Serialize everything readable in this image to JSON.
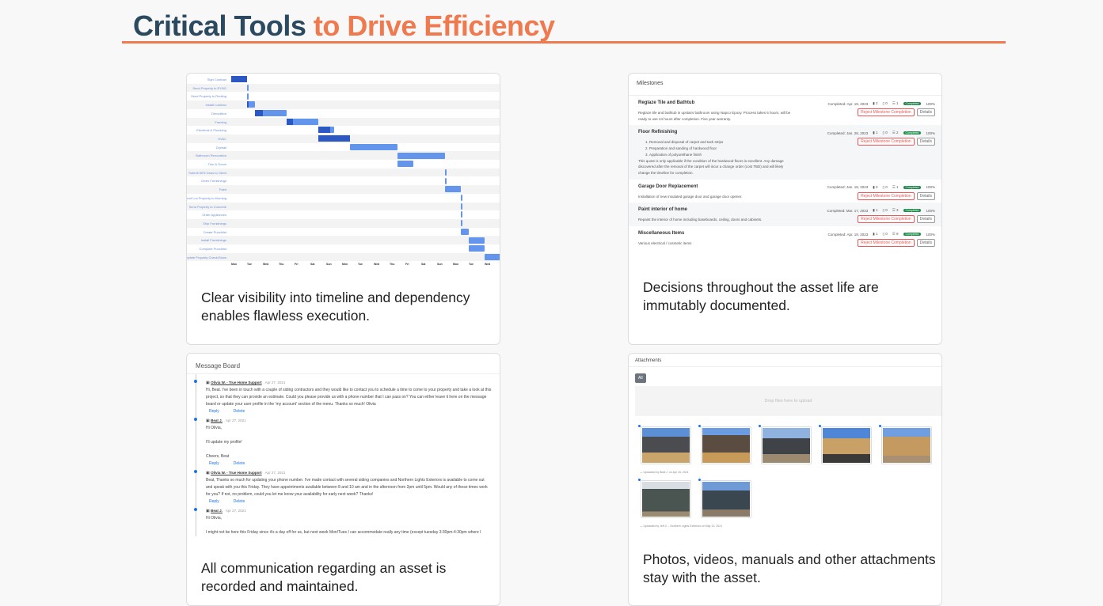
{
  "header": {
    "title_dark": "Critical Tools",
    "title_accent": "to Drive Efficiency"
  },
  "colors": {
    "accent": "#f07a4f",
    "title": "#2b4a60",
    "bar": "#6495ed",
    "bar_done": "#2c58c4",
    "completed_badge": "#1e8a4a"
  },
  "timeline": {
    "caption": "Clear visibility into timeline and dependency enables flawless execution.",
    "axis_ticks": [
      "Mon",
      "Tue",
      "Wed",
      "Thu",
      "Fri",
      "Sat",
      "Sun",
      "Mon",
      "Tue",
      "Wed",
      "Thu",
      "Fri",
      "Sat",
      "Sun",
      "Mon",
      "Tue",
      "Wed",
      "Thu"
    ],
    "tasks": [
      {
        "name": "Sign Contract",
        "start": 0,
        "end": 1,
        "progress": 1
      },
      {
        "name": "Send Property to RYNO",
        "start": 1,
        "end": 1.12,
        "progress": 0
      },
      {
        "name": "Send Property to Roofing",
        "start": 1,
        "end": 1.12,
        "progress": 0
      },
      {
        "name": "Install Lockbox",
        "start": 1,
        "end": 1.5,
        "progress": 0.2
      },
      {
        "name": "Demolition",
        "start": 1.5,
        "end": 3.5,
        "progress": 0.25
      },
      {
        "name": "Framing",
        "start": 3.5,
        "end": 5.5,
        "progress": 0.2
      },
      {
        "name": "Electrical & Plumbing",
        "start": 5.5,
        "end": 6.5,
        "progress": 0.75
      },
      {
        "name": "HVAC",
        "start": 5.5,
        "end": 7.5,
        "progress": 1
      },
      {
        "name": "Drywall",
        "start": 7.5,
        "end": 10.5,
        "progress": 0
      },
      {
        "name": "Bathroom Renovation",
        "start": 10.5,
        "end": 13.5,
        "progress": 0
      },
      {
        "name": "Trim & Doors",
        "start": 10.5,
        "end": 11.5,
        "progress": 0
      },
      {
        "name": "Submit 50% Draw to Client",
        "start": 13.5,
        "end": 13.62,
        "progress": 0
      },
      {
        "name": "Order Furnishings",
        "start": 13.5,
        "end": 13.62,
        "progress": 0
      },
      {
        "name": "Paint",
        "start": 13.5,
        "end": 14.5,
        "progress": 0
      },
      {
        "name": "Send Lux Property to Morning",
        "start": 14.5,
        "end": 14.62,
        "progress": 0
      },
      {
        "name": "Send Property to Concrete",
        "start": 14.5,
        "end": 14.62,
        "progress": 0
      },
      {
        "name": "Order Appliances",
        "start": 14.5,
        "end": 14.62,
        "progress": 0
      },
      {
        "name": "Ship Furnishings",
        "start": 14.5,
        "end": 14.62,
        "progress": 0
      },
      {
        "name": "Create Punchlist",
        "start": 14.5,
        "end": 15,
        "progress": 0
      },
      {
        "name": "Install Furnishings",
        "start": 15,
        "end": 16,
        "progress": 0
      },
      {
        "name": "Complete Punchlist",
        "start": 15,
        "end": 16,
        "progress": 0
      },
      {
        "name": "Complete Property Check/Show",
        "start": 16,
        "end": 17,
        "progress": 0
      }
    ]
  },
  "milestones": {
    "title": "Milestones",
    "caption": "Decisions throughout the asset life are immutably documented.",
    "reject_label": "Reject Milestone Completion",
    "details_label": "Details",
    "status": "Completed",
    "percent": "100%",
    "items": [
      {
        "name": "Reglaze Tile and Bathtub",
        "completed": "Completed: Apr. 19, 2023",
        "comments": "2",
        "files": "0",
        "tasks": "1",
        "desc": "Reglaze tile and bathtub in upstairs bathroom using Napco Epoxy. Process takes 6 hours, will be ready to use 24 hours after completion. Five year warranty.",
        "list": []
      },
      {
        "name": "Floor Refinishing",
        "completed": "Completed: Jan. 28, 2023",
        "comments": "1",
        "files": "0",
        "tasks": "2",
        "list": [
          "Removal and disposal of carpet and tack strips",
          "Preparation and sanding of hardwood floor",
          "Application of polyurethane finish"
        ],
        "desc": "This quote is only applicable if the condition of the hardwood floors is excellent. Any damage discovered after the removal of the carpet will incur a change order (cost TBD) and will likely change the timeline for completion."
      },
      {
        "name": "Garage Door Replacement",
        "completed": "Completed: Jan. 18, 2023",
        "comments": "0",
        "files": "0",
        "tasks": "1",
        "desc": "Installation of new insulated garage door and garage door opener.",
        "list": []
      },
      {
        "name": "Paint interior of home",
        "completed": "Completed: Mar. 17, 2023",
        "comments": "1",
        "files": "0",
        "tasks": "3",
        "desc": "Repaint the interior of home including baseboards, ceiling, doors and cabinets.",
        "list": []
      },
      {
        "name": "Miscellaneous Items",
        "completed": "Completed: Apr. 19, 2023",
        "comments": "1",
        "files": "0",
        "tasks": "9",
        "desc": "Various electrical / cosmetic items",
        "list": []
      }
    ]
  },
  "message_board": {
    "title": "Message Board",
    "caption": "All communication regarding an asset is recorded and maintained.",
    "reply": "Reply",
    "delete": "Delete",
    "messages": [
      {
        "author": "Olivia W. - True Home Support",
        "date": "Apr 27, 2021",
        "body": "Hi, Beat. I've been in touch with a couple of siding contractors and they would like to contact you to schedule a time to come to your property and take a look at this project, so that they can provide an estimate. Could you please provide us with a phone number that I can pass on? You can either leave it here on the message board or update your user profile in the 'my account' section of the menu. Thanks so much! Olivia"
      },
      {
        "author": "Beat J.",
        "date": "Apr 27, 2021",
        "body": "Hi Olivia,\n\nI'll update my profile!\n\nCheers, Beat"
      },
      {
        "author": "Olivia W. - True Home Support",
        "date": "Apr 27, 2021",
        "body": "Beat, Thanks so much for updating your phone number. I've made contact with several siding companies and Northern Lights Exteriors is available to come out and speak with you this Friday. They have appointments available between 8 and 10 am and in the afternoon from 2pm until 5pm. Would any of these times work for you? If not, no problem, could you let me know your availability for early next week? Thanks!"
      },
      {
        "author": "Beat J.",
        "date": "Apr 27, 2021",
        "body": "Hi Olivia,\n\nI might not be here this Friday since it's a day off for us, but next week Mon/Tues I can accommodate really any time (except tuesday 3:30pm-4:30pm where I"
      }
    ]
  },
  "attachments": {
    "title": "Attachments",
    "caption": "Photos, videos, manuals and other attachments stay with the asset.",
    "filter_all": "All",
    "drop_text": "Drop files here to upload",
    "uploaded_1": "— Uploaded by Beat J. on Apr 16, 2021",
    "uploaded_2": "— Uploaded by Jeff C. - Northern Lights Exteriors on May 13, 2021"
  }
}
